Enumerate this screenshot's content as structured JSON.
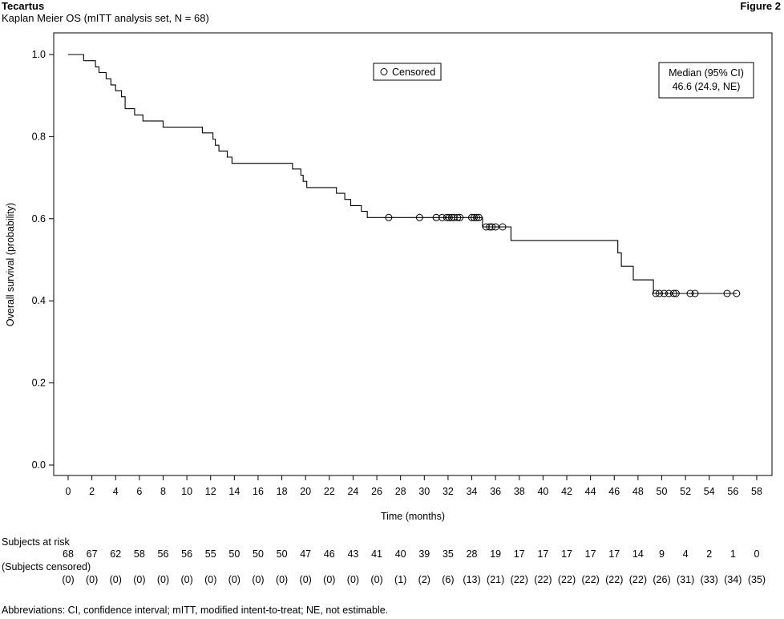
{
  "header": {
    "title": "Tecartus",
    "subtitle": "Kaplan Meier OS (mITT analysis set, N = 68)",
    "figure_label": "Figure 2"
  },
  "chart_data": {
    "type": "line",
    "subtype": "kaplan-meier",
    "xlabel": "Time (months)",
    "ylabel": "Overall survival (probability)",
    "xlim": [
      0,
      58
    ],
    "ylim": [
      0,
      1.0
    ],
    "x_ticks": [
      0,
      2,
      4,
      6,
      8,
      10,
      12,
      14,
      16,
      18,
      20,
      22,
      24,
      26,
      28,
      30,
      32,
      34,
      36,
      38,
      40,
      42,
      44,
      46,
      48,
      50,
      52,
      54,
      56,
      58
    ],
    "y_ticks": [
      0.0,
      0.2,
      0.4,
      0.6,
      0.8,
      1.0
    ],
    "y_tick_labels": [
      "0.0",
      "0.2",
      "0.4",
      "0.6",
      "0.8",
      "1.0"
    ],
    "grid": false,
    "series": [
      {
        "steps": [
          [
            0,
            1.0
          ],
          [
            1.3,
            0.985
          ],
          [
            2.3,
            0.97
          ],
          [
            2.6,
            0.956
          ],
          [
            3.2,
            0.941
          ],
          [
            3.6,
            0.926
          ],
          [
            4.0,
            0.912
          ],
          [
            4.5,
            0.897
          ],
          [
            4.8,
            0.868
          ],
          [
            5.6,
            0.853
          ],
          [
            6.3,
            0.838
          ],
          [
            8.0,
            0.823
          ],
          [
            11.3,
            0.809
          ],
          [
            12.2,
            0.794
          ],
          [
            12.4,
            0.779
          ],
          [
            12.7,
            0.765
          ],
          [
            13.4,
            0.75
          ],
          [
            13.8,
            0.735
          ],
          [
            18.9,
            0.721
          ],
          [
            19.6,
            0.706
          ],
          [
            19.8,
            0.691
          ],
          [
            20.1,
            0.676
          ],
          [
            22.6,
            0.662
          ],
          [
            23.3,
            0.647
          ],
          [
            23.8,
            0.632
          ],
          [
            24.7,
            0.618
          ],
          [
            25.2,
            0.603
          ],
          [
            34.9,
            0.58
          ],
          [
            37.3,
            0.547
          ],
          [
            46.3,
            0.517
          ],
          [
            46.6,
            0.484
          ],
          [
            47.6,
            0.451
          ],
          [
            49.3,
            0.418
          ]
        ],
        "end_x": 56.3,
        "censored": [
          [
            27.0,
            0.603
          ],
          [
            29.6,
            0.603
          ],
          [
            31.0,
            0.603
          ],
          [
            31.5,
            0.603
          ],
          [
            31.9,
            0.603
          ],
          [
            32.1,
            0.603
          ],
          [
            32.3,
            0.603
          ],
          [
            32.5,
            0.603
          ],
          [
            32.8,
            0.603
          ],
          [
            33.0,
            0.603
          ],
          [
            34.0,
            0.603
          ],
          [
            34.2,
            0.603
          ],
          [
            34.4,
            0.603
          ],
          [
            34.6,
            0.603
          ],
          [
            35.2,
            0.58
          ],
          [
            35.5,
            0.58
          ],
          [
            35.7,
            0.58
          ],
          [
            36.0,
            0.58
          ],
          [
            36.6,
            0.58
          ],
          [
            49.5,
            0.418
          ],
          [
            49.8,
            0.418
          ],
          [
            50.2,
            0.418
          ],
          [
            50.6,
            0.418
          ],
          [
            51.0,
            0.418
          ],
          [
            51.2,
            0.418
          ],
          [
            52.4,
            0.418
          ],
          [
            52.8,
            0.418
          ],
          [
            55.5,
            0.418
          ],
          [
            56.3,
            0.418
          ]
        ]
      }
    ],
    "legend": {
      "label": "Censored",
      "placement": "top-center"
    },
    "annotation": {
      "line1": "Median (95% CI)",
      "line2": "46.6 (24.9, NE)",
      "placement": "top-right"
    }
  },
  "risk_table": {
    "at_risk_label": "Subjects at risk",
    "censored_label": "(Subjects censored)",
    "at_risk": [
      "68",
      "67",
      "62",
      "58",
      "56",
      "56",
      "55",
      "50",
      "50",
      "50",
      "47",
      "46",
      "43",
      "41",
      "40",
      "39",
      "35",
      "28",
      "19",
      "17",
      "17",
      "17",
      "17",
      "17",
      "14",
      "9",
      "4",
      "2",
      "1",
      "0"
    ],
    "censored": [
      "(0)",
      "(0)",
      "(0)",
      "(0)",
      "(0)",
      "(0)",
      "(0)",
      "(0)",
      "(0)",
      "(0)",
      "(0)",
      "(0)",
      "(0)",
      "(0)",
      "(1)",
      "(2)",
      "(6)",
      "(13)",
      "(21)",
      "(22)",
      "(22)",
      "(22)",
      "(22)",
      "(22)",
      "(22)",
      "(26)",
      "(31)",
      "(33)",
      "(34)",
      "(35)"
    ]
  },
  "footnote": "Abbreviations: CI, confidence interval; mITT, modified intent-to-treat; NE, not estimable."
}
